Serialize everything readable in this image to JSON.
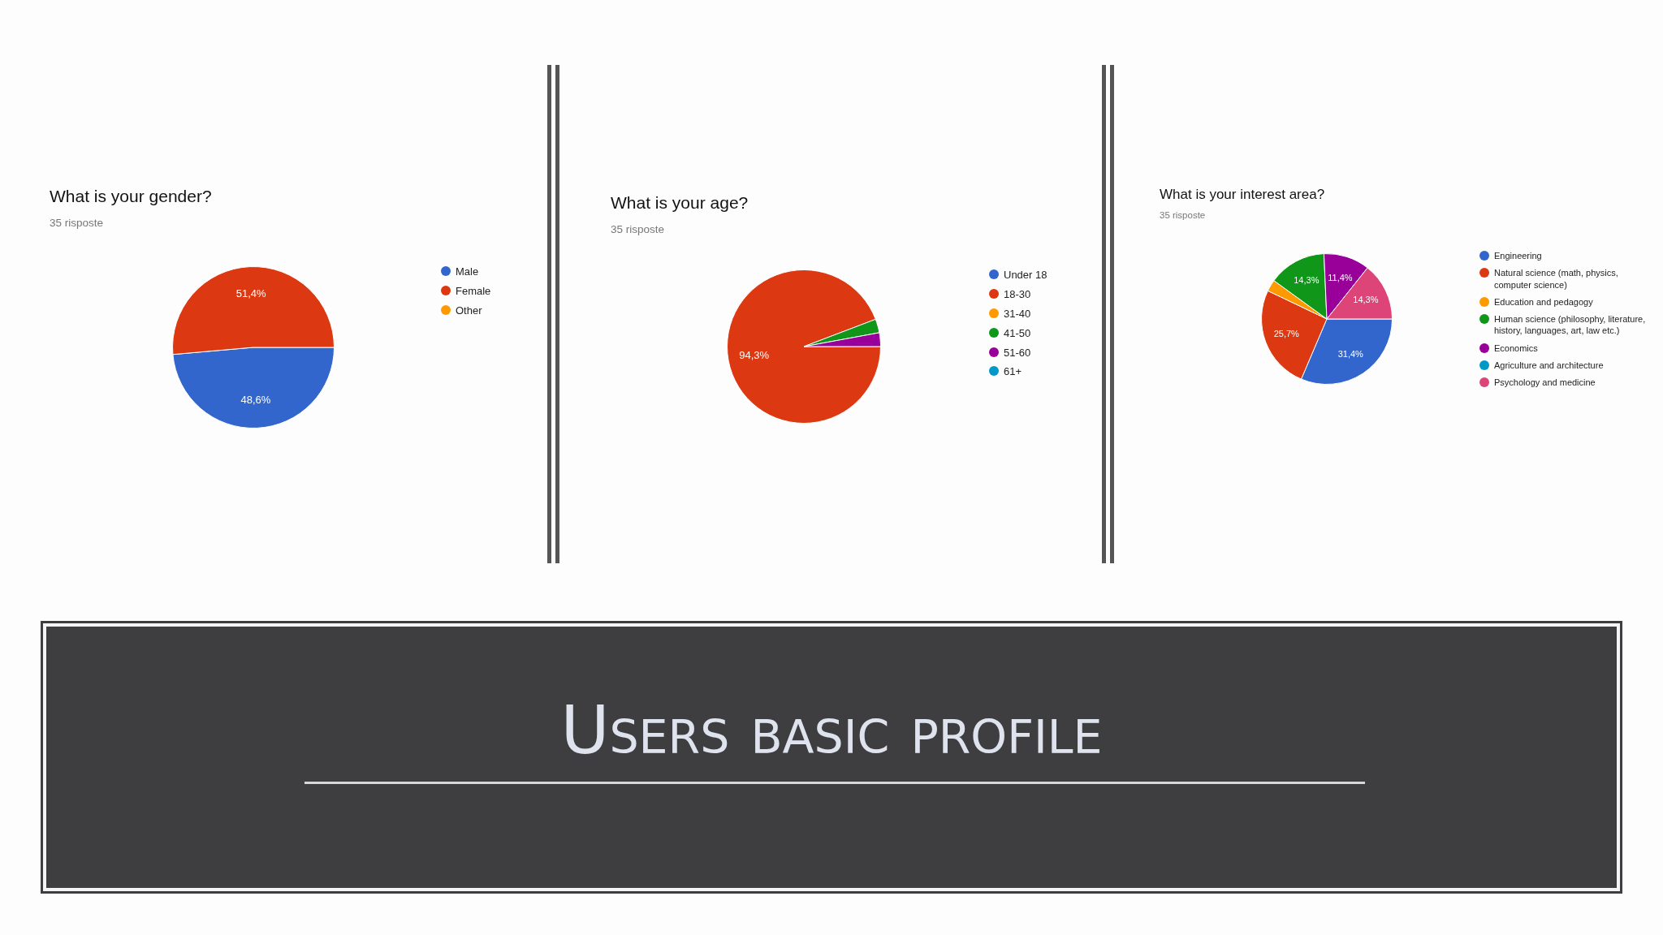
{
  "chart_data": [
    {
      "type": "pie",
      "title": "What is your gender?",
      "subtitle": "35 risposte",
      "categories": [
        "Male",
        "Female",
        "Other"
      ],
      "values": [
        48.6,
        51.4,
        0
      ],
      "colors": [
        "#3366cc",
        "#dc3912",
        "#ff9900"
      ],
      "value_labels": [
        "48,6%",
        "51,4%",
        null
      ],
      "legend": "right"
    },
    {
      "type": "pie",
      "title": "What is your age?",
      "subtitle": "35 risposte",
      "categories": [
        "Under 18",
        "18-30",
        "31-40",
        "41-50",
        "51-60",
        "61+"
      ],
      "values": [
        0,
        94.3,
        0,
        2.9,
        2.9,
        0
      ],
      "colors": [
        "#3366cc",
        "#dc3912",
        "#ff9900",
        "#109618",
        "#990099",
        "#0099c6"
      ],
      "value_labels": [
        null,
        "94,3%",
        null,
        null,
        null,
        null
      ],
      "legend": "right"
    },
    {
      "type": "pie",
      "title": "What is your interest area?",
      "subtitle": "35 risposte",
      "categories": [
        "Engineering",
        "Natural science (math, physics, computer science)",
        "Education and pedagogy",
        "Human science (philosophy, literature, history, languages, art, law etc.)",
        "Economics",
        "Agriculture and architecture",
        "Psychology and medicine"
      ],
      "values": [
        31.4,
        25.7,
        2.9,
        14.3,
        11.4,
        0,
        14.3
      ],
      "colors": [
        "#3366cc",
        "#dc3912",
        "#ff9900",
        "#109618",
        "#990099",
        "#0099c6",
        "#dd4477"
      ],
      "value_labels": [
        "31,4%",
        "25,7%",
        null,
        "14,3%",
        "11,4%",
        null,
        "14,3%"
      ],
      "legend": "right"
    },
    {
      "type": "other",
      "title": "Users basic profile"
    }
  ]
}
